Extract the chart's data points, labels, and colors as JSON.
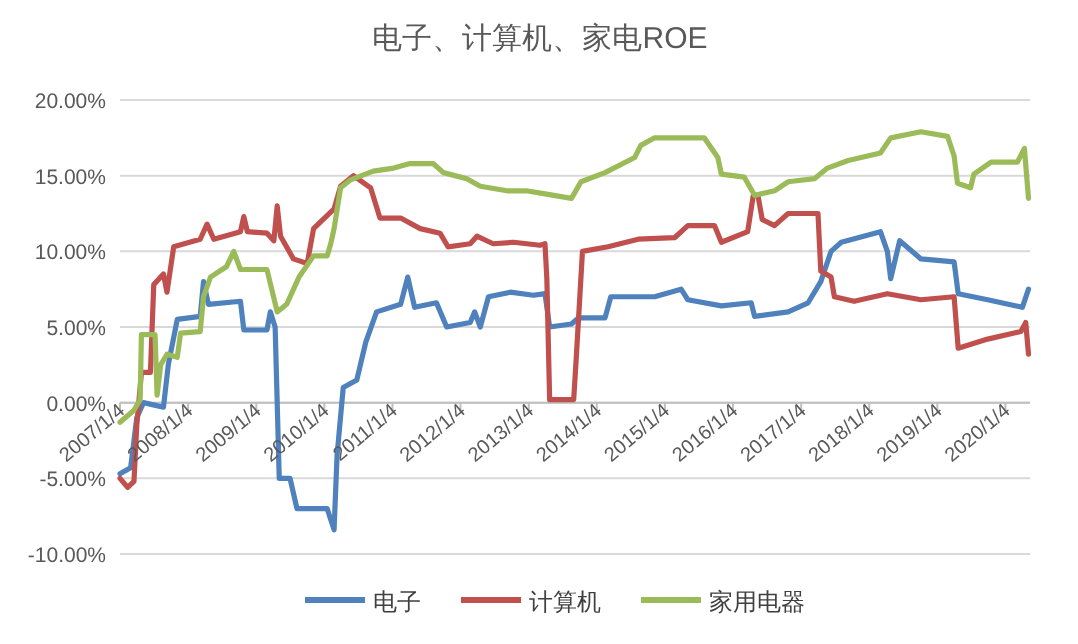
{
  "chart_data": {
    "type": "line",
    "title": "电子、计算机、家电ROE",
    "xlim": [
      "2007-01-04",
      "2020-05-15"
    ],
    "xticks": [
      {
        "value": "2007-01-04",
        "label": "2007/1/4"
      },
      {
        "value": "2008-01-04",
        "label": "2008/1/4"
      },
      {
        "value": "2009-01-04",
        "label": "2009/1/4"
      },
      {
        "value": "2010-01-04",
        "label": "2010/1/4"
      },
      {
        "value": "2011-01-04",
        "label": "2011/1/4"
      },
      {
        "value": "2012-01-04",
        "label": "2012/1/4"
      },
      {
        "value": "2013-01-04",
        "label": "2013/1/4"
      },
      {
        "value": "2014-01-04",
        "label": "2014/1/4"
      },
      {
        "value": "2015-01-04",
        "label": "2015/1/4"
      },
      {
        "value": "2016-01-04",
        "label": "2016/1/4"
      },
      {
        "value": "2017-01-04",
        "label": "2017/1/4"
      },
      {
        "value": "2018-01-04",
        "label": "2018/1/4"
      },
      {
        "value": "2019-01-04",
        "label": "2019/1/4"
      },
      {
        "value": "2020-01-04",
        "label": "2020/1/4"
      }
    ],
    "ylim": [
      -10,
      20
    ],
    "yticks": [
      {
        "value": -10,
        "label": "-10.00%"
      },
      {
        "value": -5,
        "label": "-5.00%"
      },
      {
        "value": 0,
        "label": "0.00%"
      },
      {
        "value": 5,
        "label": "5.00%"
      },
      {
        "value": 10,
        "label": "10.00%"
      },
      {
        "value": 15,
        "label": "15.00%"
      },
      {
        "value": 20,
        "label": "20.00%"
      }
    ],
    "grid": "y",
    "legend": "bottom",
    "series": [
      {
        "name": "电子",
        "color": "#4f81bd",
        "x": [
          "2007-01-04",
          "2007-03-02",
          "2007-04-04",
          "2007-05-10",
          "2007-08-25",
          "2007-09-20",
          "2007-11-07",
          "2008-03-09",
          "2008-03-27",
          "2008-04-22",
          "2008-10-11",
          "2008-10-29",
          "2009-03-02",
          "2009-03-20",
          "2009-04-15",
          "2009-05-07",
          "2009-07-04",
          "2009-08-10",
          "2010-01-19",
          "2010-02-25",
          "2010-03-13",
          "2010-04-15",
          "2010-06-27",
          "2010-08-14",
          "2010-10-11",
          "2011-02-17",
          "2011-03-27",
          "2011-05-03",
          "2011-08-28",
          "2011-10-22",
          "2012-02-25",
          "2012-03-20",
          "2012-04-19",
          "2012-06-02",
          "2012-09-27",
          "2013-01-29",
          "2013-04-01",
          "2013-04-26",
          "2013-08-21",
          "2013-09-27",
          "2014-02-17",
          "2014-03-20",
          "2014-11-10",
          "2015-04-01",
          "2015-05-07",
          "2015-11-03",
          "2016-04-11",
          "2016-04-29",
          "2016-10-26",
          "2017-02-10",
          "2017-04-19",
          "2017-06-13",
          "2017-08-07",
          "2018-03-05",
          "2018-04-11",
          "2018-04-29",
          "2018-06-16",
          "2018-10-08",
          "2019-04-04",
          "2019-04-26",
          "2019-10-01",
          "2020-04-04",
          "2020-05-07"
        ],
        "values": [
          -4.7,
          -4.3,
          -1,
          0,
          -0.3,
          2.5,
          5.5,
          5.7,
          8,
          6.5,
          6.7,
          4.8,
          4.8,
          6,
          5,
          -5,
          -5,
          -7,
          -7,
          -8.4,
          -3.5,
          1,
          1.5,
          4,
          6,
          6.5,
          8.3,
          6.3,
          6.6,
          5,
          5.3,
          6,
          5,
          7,
          7.3,
          7.1,
          7.2,
          5,
          5.2,
          5.6,
          5.6,
          7,
          7,
          7.5,
          6.8,
          6.4,
          6.6,
          5.7,
          6,
          6.6,
          8,
          10,
          10.6,
          11.3,
          10,
          8.2,
          10.7,
          9.5,
          9.3,
          7.2,
          6.8,
          6.3,
          7.5
        ]
      },
      {
        "name": "计算机",
        "color": "#c0504d",
        "x": [
          "2007-01-04",
          "2007-02-14",
          "2007-03-20",
          "2007-04-04",
          "2007-04-29",
          "2007-06-16",
          "2007-07-04",
          "2007-08-25",
          "2007-09-13",
          "2007-10-19",
          "2008-03-09",
          "2008-04-15",
          "2008-05-21",
          "2008-10-11",
          "2008-10-29",
          "2008-11-17",
          "2009-03-02",
          "2009-04-08",
          "2009-04-26",
          "2009-05-14",
          "2009-07-22",
          "2009-10-04",
          "2009-11-07",
          "2010-02-25",
          "2010-04-01",
          "2010-06-09",
          "2010-09-09",
          "2010-10-29",
          "2011-02-17",
          "2011-06-02",
          "2011-09-16",
          "2011-10-29",
          "2012-02-25",
          "2012-04-01",
          "2012-06-27",
          "2012-10-15",
          "2013-03-05",
          "2013-04-01",
          "2013-04-11",
          "2013-04-26",
          "2013-09-02",
          "2013-09-16",
          "2013-10-19",
          "2014-03-05",
          "2014-08-14",
          "2015-02-25",
          "2015-05-07",
          "2015-09-27",
          "2015-11-03",
          "2016-03-23",
          "2016-04-22",
          "2016-05-17",
          "2016-06-09",
          "2016-08-14",
          "2016-10-26",
          "2017-04-04",
          "2017-04-19",
          "2017-06-13",
          "2017-07-01",
          "2017-10-15",
          "2018-04-11",
          "2018-10-08",
          "2019-04-04",
          "2019-04-26",
          "2019-10-01",
          "2020-03-27",
          "2020-04-22",
          "2020-05-07"
        ],
        "values": [
          -5,
          -5.6,
          -5.2,
          -1.5,
          2,
          2,
          7.8,
          8.5,
          7.3,
          10.3,
          10.8,
          11.8,
          10.8,
          11.3,
          12.3,
          11.3,
          11.2,
          10.7,
          13,
          11,
          9.5,
          9.2,
          11.5,
          12.8,
          14.3,
          15,
          14.2,
          12.2,
          12.2,
          11.5,
          11.2,
          10.3,
          10.5,
          11,
          10.5,
          10.6,
          10.4,
          10.5,
          8.2,
          0.2,
          0.2,
          3,
          10,
          10.3,
          10.8,
          10.9,
          11.7,
          11.7,
          10.6,
          11.3,
          13.7,
          13.7,
          12.1,
          11.7,
          12.5,
          12.5,
          8.7,
          8.3,
          7,
          6.7,
          7.2,
          6.8,
          7,
          3.6,
          4.2,
          4.7,
          5.3,
          3.2
        ]
      },
      {
        "name": "家用电器",
        "color": "#9bbb59",
        "x": [
          "2007-01-04",
          "2007-03-20",
          "2007-04-22",
          "2007-04-29",
          "2007-07-11",
          "2007-07-22",
          "2007-08-10",
          "2007-09-13",
          "2007-11-07",
          "2007-11-25",
          "2008-03-09",
          "2008-03-27",
          "2008-05-03",
          "2008-07-29",
          "2008-09-05",
          "2008-10-11",
          "2009-03-02",
          "2009-04-26",
          "2009-06-16",
          "2009-08-21",
          "2009-11-07",
          "2010-01-19",
          "2010-02-07",
          "2010-02-25",
          "2010-04-01",
          "2010-05-21",
          "2010-09-23",
          "2011-01-11",
          "2011-04-08",
          "2011-08-10",
          "2011-10-04",
          "2012-02-07",
          "2012-04-19",
          "2012-09-09",
          "2012-12-23",
          "2013-04-01",
          "2013-08-21",
          "2013-10-11",
          "2014-02-17",
          "2014-07-26",
          "2014-08-28",
          "2014-11-10",
          "2015-08-03",
          "2015-10-15",
          "2015-11-03",
          "2016-03-05",
          "2016-04-29",
          "2016-08-14",
          "2016-10-26",
          "2017-03-16",
          "2017-05-25",
          "2017-09-13",
          "2018-03-05",
          "2018-04-29",
          "2018-10-08",
          "2019-02-28",
          "2019-04-04",
          "2019-04-22",
          "2019-07-01",
          "2019-07-19",
          "2019-10-19",
          "2020-03-09",
          "2020-04-15",
          "2020-05-07"
        ],
        "values": [
          -1.3,
          -0.5,
          0.2,
          4.5,
          4.5,
          0.5,
          2.5,
          3.2,
          3,
          4.6,
          4.7,
          7,
          8.3,
          9,
          10,
          8.8,
          8.8,
          6,
          6.5,
          8.3,
          9.7,
          9.7,
          10.5,
          11.5,
          14.2,
          14.7,
          15.3,
          15.5,
          15.8,
          15.8,
          15.2,
          14.8,
          14.3,
          14,
          14,
          13.8,
          13.5,
          14.6,
          15.2,
          16.2,
          17,
          17.5,
          17.5,
          16.2,
          15.1,
          14.9,
          13.7,
          14,
          14.6,
          14.8,
          15.5,
          16,
          16.5,
          17.5,
          17.9,
          17.6,
          16.3,
          14.5,
          14.2,
          15.1,
          15.9,
          15.9,
          16.8,
          13.5
        ]
      }
    ]
  }
}
